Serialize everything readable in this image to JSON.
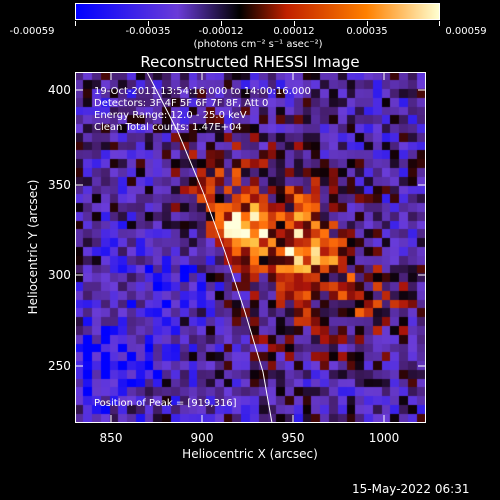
{
  "colorbar": {
    "ticks": [
      "-0.00059",
      "-0.00035",
      "-0.00012",
      "0.00012",
      "0.00035",
      "0.00059"
    ],
    "units": "(photons cm⁻² s⁻¹ asec⁻²)",
    "colors": [
      "#0000ff",
      "#6a3cd8",
      "#000000",
      "#c02000",
      "#ff8000",
      "#ffffd0"
    ]
  },
  "title": "Reconstructed RHESSI Image",
  "annotations": {
    "time": "19-Oct-2011 13:54:16.000 to 14:00:16.000",
    "detectors": "Detectors: 3F 4F 5F 6F 7F 8F, Att 0",
    "energy": "Energy Range: 12.0 - 25.0 keV",
    "method": "Clean     Total counts: 1.47E+04",
    "peak": "Position of Peak = [919,316]"
  },
  "axes": {
    "xlabel": "Heliocentric X (arcsec)",
    "ylabel": "Heliocentric Y (arcsec)",
    "xticks": [
      "850",
      "900",
      "950",
      "1000"
    ],
    "yticks": [
      "400",
      "350",
      "300",
      "250"
    ]
  },
  "footer": {
    "date": "15-May-2022 06:31"
  },
  "image": {
    "peak_x": 919,
    "peak_y": 316
  }
}
